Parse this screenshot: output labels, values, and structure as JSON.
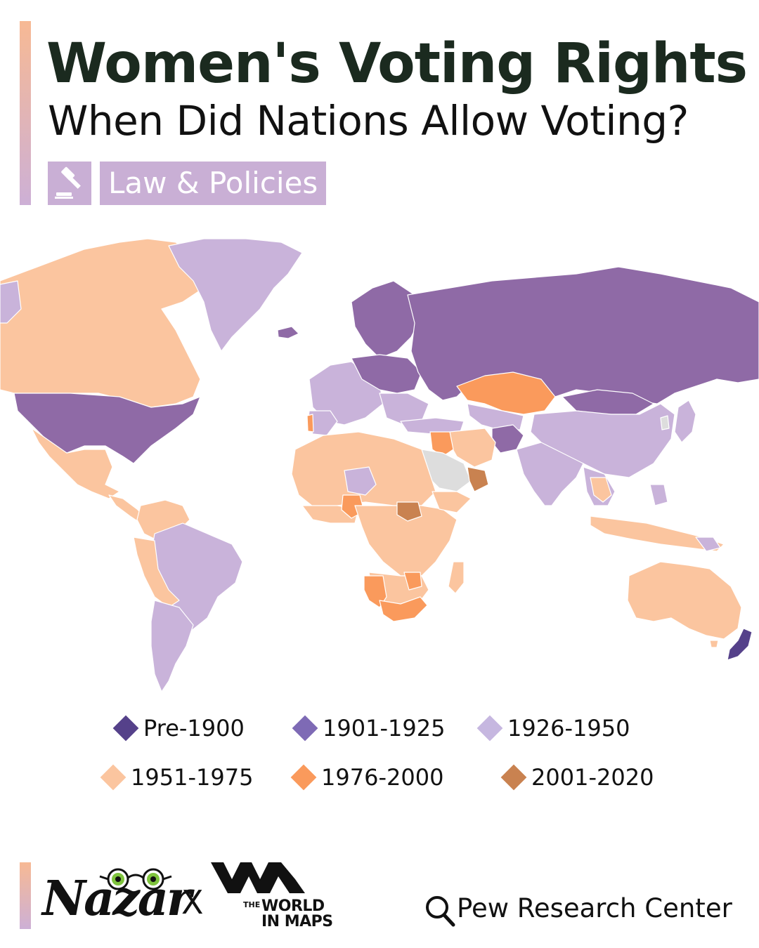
{
  "header": {
    "title": "Women's Voting Rights",
    "subtitle": "When Did Nations Allow Voting?",
    "category_icon": "gavel-icon",
    "category_label": "Law & Policies"
  },
  "colors": {
    "accent_top": "#f7b994",
    "accent_bottom": "#cdb0d6",
    "pre_1900": "#55418a",
    "y1901_1925": "#8f6aa6",
    "y1926_1950": "#c9b3da",
    "y1951_1975": "#fbc59f",
    "y1976_2000": "#fa9a5c",
    "y2001_2020": "#c98250",
    "no_data": "#dddddd"
  },
  "legend": [
    {
      "label": "Pre-1900",
      "color": "#55418a"
    },
    {
      "label": "1901-1925",
      "color": "#7e6ab5"
    },
    {
      "label": "1926-1950",
      "color": "#c6b7e0"
    },
    {
      "label": "1951-1975",
      "color": "#fbc59f"
    },
    {
      "label": "1976-2000",
      "color": "#fa9a5c"
    },
    {
      "label": "2001-2020",
      "color": "#c98250"
    }
  ],
  "footer": {
    "brand": "Nazar",
    "brand_icon": "eyes-icon",
    "separator": "X",
    "partner_small": "THE",
    "partner_line1": "WORLD",
    "partner_line2": "IN MAPS",
    "source_icon": "search-icon",
    "source": "Pew Research Center"
  }
}
